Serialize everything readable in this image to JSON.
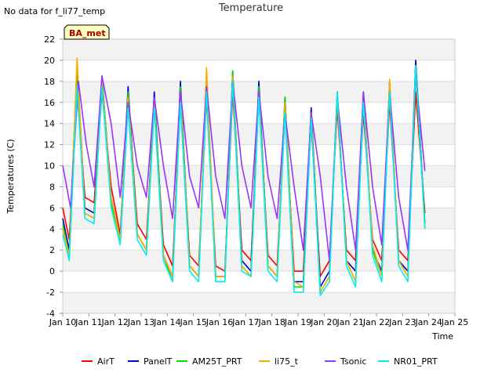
{
  "no_data_note": "No data for f_li77_temp",
  "chart_data": {
    "type": "line",
    "title": "Temperature",
    "xlabel": "Time",
    "ylabel": "Temperatures (C)",
    "badge": "BA_met",
    "ylim": [
      -4,
      22
    ],
    "yticks": [
      -4,
      -2,
      0,
      2,
      4,
      6,
      8,
      10,
      12,
      14,
      16,
      18,
      20,
      22
    ],
    "xlim": [
      10,
      25
    ],
    "xticks": [
      {
        "value": 10,
        "label": "Jan 10"
      },
      {
        "value": 11,
        "label": "Jan 11"
      },
      {
        "value": 12,
        "label": "Jan 12"
      },
      {
        "value": 13,
        "label": "Jan 13"
      },
      {
        "value": 14,
        "label": "Jan 14"
      },
      {
        "value": 15,
        "label": "Jan 15"
      },
      {
        "value": 16,
        "label": "Jan 16"
      },
      {
        "value": 17,
        "label": "Jan 17"
      },
      {
        "value": 18,
        "label": "Jan 18"
      },
      {
        "value": 19,
        "label": "Jan 19"
      },
      {
        "value": 20,
        "label": "Jan 20"
      },
      {
        "value": 21,
        "label": "Jan 21"
      },
      {
        "value": 22,
        "label": "Jan 22"
      },
      {
        "value": 23,
        "label": "Jan 23"
      },
      {
        "value": 24,
        "label": "Jan 24"
      },
      {
        "value": 25,
        "label": "Jan 25"
      }
    ],
    "grid": "horizontal bands",
    "legend_position": "bottom",
    "series": [
      {
        "name": "AirT",
        "color": "#ff0000",
        "x": [
          10.0,
          10.25,
          10.55,
          10.85,
          11.2,
          11.5,
          11.85,
          12.2,
          12.5,
          12.85,
          13.2,
          13.5,
          13.85,
          14.2,
          14.5,
          14.85,
          15.2,
          15.5,
          15.85,
          16.2,
          16.5,
          16.85,
          17.2,
          17.5,
          17.85,
          18.2,
          18.5,
          18.85,
          19.2,
          19.5,
          19.85,
          20.2,
          20.5,
          20.85,
          21.2,
          21.5,
          21.85,
          22.2,
          22.5,
          22.85,
          23.2,
          23.5,
          23.85
        ],
        "y": [
          6.0,
          3.0,
          17.0,
          7.0,
          6.5,
          17.0,
          8.0,
          3.5,
          16.5,
          4.5,
          3.0,
          16.0,
          2.5,
          0.5,
          16.0,
          1.5,
          0.5,
          16.5,
          0.5,
          0.0,
          17.0,
          2.0,
          1.0,
          16.5,
          1.5,
          0.5,
          15.0,
          0.0,
          0.0,
          14.0,
          -0.5,
          1.0,
          15.5,
          2.0,
          1.0,
          15.0,
          3.0,
          1.0,
          16.0,
          2.0,
          1.0,
          17.0,
          5.5
        ]
      },
      {
        "name": "PanelT",
        "color": "#0000cc",
        "x": [
          10.0,
          10.25,
          10.55,
          10.85,
          11.2,
          11.5,
          11.85,
          12.2,
          12.5,
          12.85,
          13.2,
          13.5,
          13.85,
          14.2,
          14.5,
          14.85,
          15.2,
          15.5,
          15.85,
          16.2,
          16.5,
          16.85,
          17.2,
          17.5,
          17.85,
          18.2,
          18.5,
          18.85,
          19.2,
          19.5,
          19.85,
          20.2,
          20.5,
          20.85,
          21.2,
          21.5,
          21.85,
          22.2,
          22.5,
          22.85,
          23.2,
          23.5,
          23.85
        ],
        "y": [
          5.0,
          2.0,
          19.5,
          6.0,
          5.5,
          18.5,
          7.0,
          3.0,
          17.5,
          3.5,
          2.0,
          17.0,
          1.5,
          -0.5,
          18.0,
          0.5,
          -0.5,
          18.5,
          -0.5,
          -0.5,
          19.0,
          1.0,
          0.0,
          18.0,
          0.5,
          -0.5,
          16.5,
          -1.0,
          -1.0,
          15.5,
          -1.5,
          0.0,
          17.0,
          1.0,
          0.0,
          17.0,
          2.0,
          0.0,
          18.0,
          1.0,
          0.0,
          20.0,
          4.5
        ]
      },
      {
        "name": "AM25T_PRT",
        "color": "#00dd00",
        "x": [
          10.0,
          10.25,
          10.55,
          10.85,
          11.2,
          11.5,
          11.85,
          12.2,
          12.5,
          12.85,
          13.2,
          13.5,
          13.85,
          14.2,
          14.5,
          14.85,
          15.2,
          15.5,
          15.85,
          16.2,
          16.5,
          16.85,
          17.2,
          17.5,
          17.85,
          18.2,
          18.5,
          18.85,
          19.2,
          19.5,
          19.85,
          20.2,
          20.5,
          20.85,
          21.2,
          21.5,
          21.85,
          22.2,
          22.5,
          22.85,
          23.2,
          23.5,
          23.85
        ],
        "y": [
          4.5,
          1.5,
          19.0,
          5.5,
          5.0,
          18.5,
          6.5,
          3.0,
          17.0,
          3.5,
          2.0,
          16.5,
          1.5,
          -1.0,
          17.5,
          0.5,
          -0.5,
          18.0,
          -1.0,
          -1.0,
          19.0,
          0.5,
          -0.5,
          17.5,
          0.5,
          -0.5,
          16.5,
          -1.5,
          -1.5,
          15.0,
          -2.0,
          -0.5,
          17.0,
          1.0,
          -1.0,
          16.5,
          2.0,
          -0.5,
          17.5,
          1.0,
          -0.5,
          19.0,
          4.5
        ]
      },
      {
        "name": "li75_t",
        "color": "#ffaa00",
        "x": [
          10.0,
          10.25,
          10.55,
          10.85,
          11.2,
          11.5,
          11.85,
          12.2,
          12.5,
          12.85,
          13.2,
          13.5,
          13.85,
          14.2,
          14.5,
          14.85,
          15.2,
          15.5,
          15.85,
          16.2,
          16.5,
          16.85,
          17.2,
          17.5,
          17.85,
          18.2,
          18.5,
          18.85,
          19.2,
          19.5,
          19.85,
          20.2,
          20.5,
          20.85,
          21.2,
          21.5,
          21.85,
          22.2,
          22.5,
          22.85,
          23.2,
          23.5,
          23.85
        ],
        "y": [
          4.0,
          1.5,
          20.2,
          5.5,
          5.0,
          18.0,
          7.0,
          3.0,
          16.5,
          3.5,
          2.0,
          16.0,
          1.5,
          -0.5,
          17.0,
          0.5,
          -0.5,
          19.3,
          -0.5,
          -0.5,
          18.5,
          0.5,
          -0.5,
          17.0,
          0.5,
          -0.5,
          16.0,
          -1.0,
          -1.5,
          15.0,
          -2.0,
          -0.5,
          16.5,
          1.0,
          -1.0,
          16.5,
          2.5,
          -0.5,
          18.2,
          1.0,
          -0.5,
          19.5,
          4.0
        ]
      },
      {
        "name": "Tsonic",
        "color": "#9933ff",
        "x": [
          10.0,
          10.3,
          10.6,
          10.9,
          11.2,
          11.5,
          11.85,
          12.2,
          12.5,
          12.85,
          13.2,
          13.5,
          13.85,
          14.2,
          14.5,
          14.85,
          15.2,
          15.5,
          15.85,
          16.2,
          16.5,
          16.85,
          17.2,
          17.5,
          17.85,
          18.2,
          18.5,
          18.85,
          19.2,
          19.5,
          19.85,
          20.2,
          20.5,
          20.85,
          21.2,
          21.5,
          21.85,
          22.2,
          22.5,
          22.85,
          23.2,
          23.5,
          23.85
        ],
        "y": [
          10.0,
          6.0,
          18.0,
          12.0,
          8.0,
          18.5,
          14.0,
          7.0,
          16.0,
          10.0,
          7.0,
          16.5,
          10.0,
          5.0,
          17.0,
          9.0,
          6.0,
          17.5,
          9.0,
          5.0,
          18.0,
          10.0,
          6.0,
          17.0,
          9.0,
          5.0,
          15.0,
          8.0,
          2.0,
          15.0,
          9.0,
          1.0,
          16.5,
          8.0,
          2.0,
          17.0,
          8.0,
          2.5,
          17.0,
          7.0,
          2.0,
          18.5,
          9.5
        ]
      },
      {
        "name": "NR01_PRT",
        "color": "#00eeee",
        "x": [
          10.0,
          10.25,
          10.55,
          10.85,
          11.2,
          11.5,
          11.85,
          12.2,
          12.5,
          12.85,
          13.2,
          13.5,
          13.85,
          14.2,
          14.5,
          14.85,
          15.2,
          15.5,
          15.85,
          16.2,
          16.5,
          16.85,
          17.2,
          17.5,
          17.85,
          18.2,
          18.5,
          18.85,
          19.2,
          19.5,
          19.85,
          20.2,
          20.5,
          20.85,
          21.2,
          21.5,
          21.85,
          22.2,
          22.5,
          22.85,
          23.2,
          23.5,
          23.85
        ],
        "y": [
          3.5,
          1.0,
          17.5,
          5.0,
          4.5,
          17.5,
          6.0,
          2.5,
          15.5,
          3.0,
          1.5,
          15.5,
          1.0,
          -1.0,
          16.0,
          0.0,
          -1.0,
          17.0,
          -1.0,
          -1.0,
          18.0,
          0.0,
          -0.5,
          16.5,
          0.0,
          -1.0,
          15.0,
          -2.0,
          -2.0,
          14.5,
          -2.3,
          -1.0,
          17.0,
          0.5,
          -1.5,
          16.0,
          1.5,
          -1.0,
          17.0,
          0.5,
          -1.0,
          19.5,
          4.0
        ]
      }
    ]
  }
}
